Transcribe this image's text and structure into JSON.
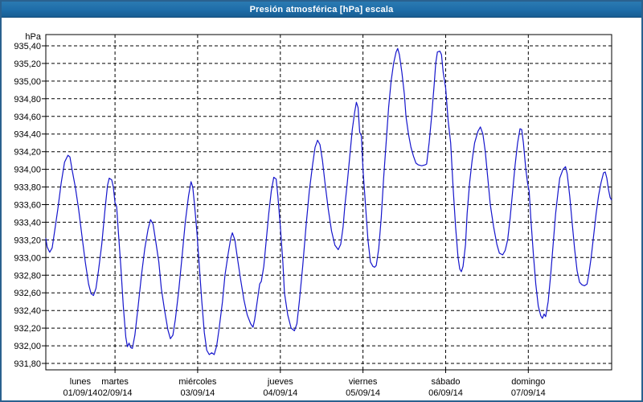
{
  "window": {
    "title": "Presión atmosférica [hPa] escala"
  },
  "colors": {
    "titlebar": "#1e6da8",
    "titlebar_text": "#ffffff",
    "window_border": "#2a618f",
    "plot_border": "#000000",
    "gridline": "#000000",
    "axis_text": "#000000",
    "series_line": "#1515cc",
    "background": "#ffffff"
  },
  "chart_data": {
    "type": "line",
    "title": "Presión atmosférica [hPa] escala",
    "grid": "dashed",
    "legend": "none",
    "y_axis": {
      "unit_label": "hPa",
      "min": 931.8,
      "max": 935.4,
      "step": 0.2,
      "decimal_style": "comma",
      "tick_labels": [
        "935,40",
        "935,20",
        "935,00",
        "934,80",
        "934,60",
        "934,40",
        "934,20",
        "934,00",
        "933,80",
        "933,60",
        "933,40",
        "933,20",
        "933,00",
        "932,80",
        "932,60",
        "932,40",
        "932,20",
        "932,00",
        "931,80"
      ]
    },
    "x_axis": {
      "range_days": [
        0.163,
        7.008
      ],
      "gridline_days": [
        1,
        2,
        3,
        4,
        5,
        6
      ],
      "days": [
        {
          "name": "lunes",
          "date": "01/09/14"
        },
        {
          "name": "martes",
          "date": "02/09/14"
        },
        {
          "name": "miércoles",
          "date": "03/09/14"
        },
        {
          "name": "jueves",
          "date": "04/09/14"
        },
        {
          "name": "viernes",
          "date": "05/09/14"
        },
        {
          "name": "sábado",
          "date": "06/09/14"
        },
        {
          "name": "domingo",
          "date": "07/09/14"
        }
      ]
    },
    "series": [
      {
        "name": "Presión atmosférica [hPa]",
        "color": "#1515cc",
        "points": [
          [
            0.163,
            933.22
          ],
          [
            0.18,
            933.12
          ],
          [
            0.21,
            933.06
          ],
          [
            0.24,
            933.11
          ],
          [
            0.27,
            933.3
          ],
          [
            0.31,
            933.56
          ],
          [
            0.35,
            933.85
          ],
          [
            0.39,
            934.08
          ],
          [
            0.43,
            934.16
          ],
          [
            0.455,
            934.14
          ],
          [
            0.48,
            934.0
          ],
          [
            0.52,
            933.8
          ],
          [
            0.56,
            933.55
          ],
          [
            0.6,
            933.25
          ],
          [
            0.64,
            932.95
          ],
          [
            0.68,
            932.7
          ],
          [
            0.71,
            932.59
          ],
          [
            0.74,
            932.57
          ],
          [
            0.77,
            932.65
          ],
          [
            0.8,
            932.85
          ],
          [
            0.84,
            933.15
          ],
          [
            0.88,
            933.55
          ],
          [
            0.91,
            933.82
          ],
          [
            0.93,
            933.9
          ],
          [
            0.96,
            933.88
          ],
          [
            0.98,
            933.8
          ],
          [
            1.0,
            933.62
          ],
          [
            1.02,
            933.58
          ],
          [
            1.04,
            933.3
          ],
          [
            1.07,
            932.9
          ],
          [
            1.1,
            932.45
          ],
          [
            1.13,
            932.1
          ],
          [
            1.15,
            931.99
          ],
          [
            1.17,
            932.03
          ],
          [
            1.19,
            931.98
          ],
          [
            1.21,
            931.97
          ],
          [
            1.24,
            932.12
          ],
          [
            1.28,
            932.45
          ],
          [
            1.32,
            932.8
          ],
          [
            1.36,
            933.1
          ],
          [
            1.4,
            933.32
          ],
          [
            1.43,
            933.43
          ],
          [
            1.46,
            933.38
          ],
          [
            1.49,
            933.2
          ],
          [
            1.53,
            932.95
          ],
          [
            1.56,
            932.65
          ],
          [
            1.6,
            932.4
          ],
          [
            1.64,
            932.18
          ],
          [
            1.67,
            932.08
          ],
          [
            1.7,
            932.12
          ],
          [
            1.73,
            932.3
          ],
          [
            1.77,
            932.62
          ],
          [
            1.81,
            933.0
          ],
          [
            1.85,
            933.4
          ],
          [
            1.89,
            933.7
          ],
          [
            1.92,
            933.86
          ],
          [
            1.94,
            933.8
          ],
          [
            1.96,
            933.62
          ],
          [
            1.99,
            933.3
          ],
          [
            2.02,
            932.9
          ],
          [
            2.05,
            932.5
          ],
          [
            2.08,
            932.15
          ],
          [
            2.11,
            931.95
          ],
          [
            2.14,
            931.9
          ],
          [
            2.17,
            931.92
          ],
          [
            2.2,
            931.9
          ],
          [
            2.23,
            932.0
          ],
          [
            2.26,
            932.2
          ],
          [
            2.3,
            932.5
          ],
          [
            2.33,
            932.8
          ],
          [
            2.37,
            933.05
          ],
          [
            2.4,
            933.22
          ],
          [
            2.42,
            933.28
          ],
          [
            2.45,
            933.2
          ],
          [
            2.48,
            933.0
          ],
          [
            2.52,
            932.75
          ],
          [
            2.56,
            932.52
          ],
          [
            2.6,
            932.35
          ],
          [
            2.64,
            932.25
          ],
          [
            2.67,
            932.21
          ],
          [
            2.69,
            932.3
          ],
          [
            2.72,
            932.5
          ],
          [
            2.75,
            932.7
          ],
          [
            2.77,
            932.73
          ],
          [
            2.8,
            932.9
          ],
          [
            2.83,
            933.2
          ],
          [
            2.86,
            933.5
          ],
          [
            2.89,
            933.75
          ],
          [
            2.92,
            933.91
          ],
          [
            2.95,
            933.89
          ],
          [
            2.97,
            933.7
          ],
          [
            3.0,
            933.35
          ],
          [
            3.03,
            932.95
          ],
          [
            3.05,
            932.6
          ],
          [
            3.09,
            932.35
          ],
          [
            3.13,
            932.2
          ],
          [
            3.17,
            932.17
          ],
          [
            3.2,
            932.25
          ],
          [
            3.23,
            932.5
          ],
          [
            3.27,
            932.9
          ],
          [
            3.31,
            933.35
          ],
          [
            3.35,
            933.75
          ],
          [
            3.39,
            934.05
          ],
          [
            3.42,
            934.25
          ],
          [
            3.45,
            934.33
          ],
          [
            3.48,
            934.28
          ],
          [
            3.51,
            934.1
          ],
          [
            3.54,
            933.85
          ],
          [
            3.58,
            933.55
          ],
          [
            3.62,
            933.3
          ],
          [
            3.66,
            933.14
          ],
          [
            3.7,
            933.09
          ],
          [
            3.73,
            933.15
          ],
          [
            3.76,
            933.35
          ],
          [
            3.78,
            933.58
          ],
          [
            3.81,
            933.85
          ],
          [
            3.84,
            934.15
          ],
          [
            3.87,
            934.45
          ],
          [
            3.9,
            934.65
          ],
          [
            3.92,
            934.76
          ],
          [
            3.94,
            934.7
          ],
          [
            3.96,
            934.42
          ],
          [
            3.98,
            934.38
          ],
          [
            4.0,
            934.0
          ],
          [
            4.03,
            933.6
          ],
          [
            4.06,
            933.2
          ],
          [
            4.09,
            932.95
          ],
          [
            4.12,
            932.9
          ],
          [
            4.14,
            932.89
          ],
          [
            4.16,
            932.91
          ],
          [
            4.19,
            933.1
          ],
          [
            4.22,
            933.45
          ],
          [
            4.25,
            933.9
          ],
          [
            4.28,
            934.3
          ],
          [
            4.31,
            934.7
          ],
          [
            4.34,
            935.0
          ],
          [
            4.37,
            935.2
          ],
          [
            4.4,
            935.33
          ],
          [
            4.42,
            935.37
          ],
          [
            4.44,
            935.3
          ],
          [
            4.47,
            935.1
          ],
          [
            4.5,
            934.85
          ],
          [
            4.52,
            934.6
          ],
          [
            4.55,
            934.4
          ],
          [
            4.58,
            934.25
          ],
          [
            4.61,
            934.15
          ],
          [
            4.64,
            934.07
          ],
          [
            4.67,
            934.05
          ],
          [
            4.71,
            934.04
          ],
          [
            4.75,
            934.05
          ],
          [
            4.77,
            934.06
          ],
          [
            4.8,
            934.3
          ],
          [
            4.83,
            934.6
          ],
          [
            4.86,
            934.95
          ],
          [
            4.88,
            935.2
          ],
          [
            4.9,
            935.33
          ],
          [
            4.93,
            935.34
          ],
          [
            4.95,
            935.3
          ],
          [
            4.97,
            935.1
          ],
          [
            5.0,
            934.92
          ],
          [
            5.03,
            934.55
          ],
          [
            5.06,
            934.3
          ],
          [
            5.09,
            933.8
          ],
          [
            5.12,
            933.35
          ],
          [
            5.15,
            933.0
          ],
          [
            5.17,
            932.87
          ],
          [
            5.19,
            932.84
          ],
          [
            5.21,
            932.9
          ],
          [
            5.24,
            933.15
          ],
          [
            5.26,
            933.5
          ],
          [
            5.29,
            933.85
          ],
          [
            5.32,
            934.1
          ],
          [
            5.35,
            934.3
          ],
          [
            5.39,
            934.43
          ],
          [
            5.42,
            934.48
          ],
          [
            5.45,
            934.4
          ],
          [
            5.48,
            934.2
          ],
          [
            5.51,
            933.9
          ],
          [
            5.54,
            933.6
          ],
          [
            5.58,
            933.35
          ],
          [
            5.62,
            933.15
          ],
          [
            5.65,
            933.05
          ],
          [
            5.69,
            933.03
          ],
          [
            5.72,
            933.08
          ],
          [
            5.75,
            933.2
          ],
          [
            5.78,
            933.45
          ],
          [
            5.81,
            933.75
          ],
          [
            5.84,
            934.05
          ],
          [
            5.87,
            934.3
          ],
          [
            5.9,
            934.46
          ],
          [
            5.92,
            934.45
          ],
          [
            5.94,
            934.3
          ],
          [
            5.97,
            934.0
          ],
          [
            5.99,
            933.85
          ],
          [
            6.01,
            933.75
          ],
          [
            6.03,
            933.45
          ],
          [
            6.06,
            933.05
          ],
          [
            6.09,
            932.7
          ],
          [
            6.12,
            932.45
          ],
          [
            6.15,
            932.34
          ],
          [
            6.17,
            932.31
          ],
          [
            6.19,
            932.36
          ],
          [
            6.21,
            932.33
          ],
          [
            6.24,
            932.5
          ],
          [
            6.27,
            932.8
          ],
          [
            6.3,
            933.15
          ],
          [
            6.33,
            933.5
          ],
          [
            6.36,
            933.75
          ],
          [
            6.38,
            933.9
          ],
          [
            6.42,
            934.0
          ],
          [
            6.45,
            934.03
          ],
          [
            6.47,
            933.95
          ],
          [
            6.5,
            933.7
          ],
          [
            6.53,
            933.4
          ],
          [
            6.56,
            933.1
          ],
          [
            6.59,
            932.85
          ],
          [
            6.62,
            932.72
          ],
          [
            6.65,
            932.69
          ],
          [
            6.68,
            932.68
          ],
          [
            6.71,
            932.7
          ],
          [
            6.73,
            932.8
          ],
          [
            6.76,
            933.0
          ],
          [
            6.79,
            933.25
          ],
          [
            6.82,
            933.5
          ],
          [
            6.85,
            933.7
          ],
          [
            6.88,
            933.85
          ],
          [
            6.91,
            933.96
          ],
          [
            6.93,
            933.97
          ],
          [
            6.95,
            933.9
          ],
          [
            6.97,
            933.77
          ],
          [
            6.99,
            933.68
          ],
          [
            7.008,
            933.65
          ]
        ]
      }
    ]
  }
}
